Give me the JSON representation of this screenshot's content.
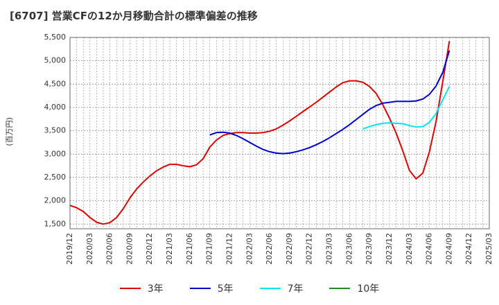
{
  "chart_data": {
    "type": "line",
    "title": "[6707]  営業CFの12か月移動合計の標準偏差の推移",
    "ylabel": "(百万円)",
    "xlabel": "",
    "ylim": [
      1400,
      5500
    ],
    "yticks": [
      1500,
      2000,
      2500,
      3000,
      3500,
      4000,
      4500,
      5000,
      5500
    ],
    "ytick_labels": [
      "1,500",
      "2,000",
      "2,500",
      "3,000",
      "3,500",
      "4,000",
      "4,500",
      "5,000",
      "5,500"
    ],
    "x_ticks": [
      "2019/12",
      "2020/03",
      "2020/06",
      "2020/09",
      "2020/12",
      "2021/03",
      "2021/06",
      "2021/09",
      "2021/12",
      "2022/03",
      "2022/06",
      "2022/09",
      "2022/12",
      "2023/03",
      "2023/06",
      "2023/09",
      "2023/12",
      "2024/03",
      "2024/06",
      "2024/09",
      "2024/12",
      "2025/03"
    ],
    "grid": true,
    "legend_position": "bottom",
    "series": [
      {
        "name": "3年",
        "color": "#dd0000",
        "x": [
          "2019/12",
          "2020/01",
          "2020/02",
          "2020/03",
          "2020/04",
          "2020/05",
          "2020/06",
          "2020/07",
          "2020/08",
          "2020/09",
          "2020/10",
          "2020/11",
          "2020/12",
          "2021/01",
          "2021/02",
          "2021/03",
          "2021/04",
          "2021/05",
          "2021/06",
          "2021/07",
          "2021/08",
          "2021/09",
          "2021/10",
          "2021/11",
          "2021/12",
          "2022/01",
          "2022/02",
          "2022/03",
          "2022/04",
          "2022/05",
          "2022/06",
          "2022/07",
          "2022/08",
          "2022/09",
          "2022/10",
          "2022/11",
          "2022/12",
          "2023/01",
          "2023/02",
          "2023/03",
          "2023/04",
          "2023/05",
          "2023/06",
          "2023/07",
          "2023/08",
          "2023/09",
          "2023/10",
          "2023/11",
          "2023/12",
          "2024/01",
          "2024/02",
          "2024/03",
          "2024/04",
          "2024/05",
          "2024/06",
          "2024/07",
          "2024/08",
          "2024/09"
        ],
        "values": [
          1900,
          1850,
          1770,
          1640,
          1540,
          1500,
          1530,
          1640,
          1830,
          2060,
          2250,
          2400,
          2530,
          2640,
          2720,
          2780,
          2780,
          2750,
          2730,
          2770,
          2900,
          3150,
          3300,
          3400,
          3440,
          3460,
          3460,
          3450,
          3450,
          3460,
          3490,
          3540,
          3620,
          3710,
          3810,
          3910,
          4010,
          4110,
          4220,
          4330,
          4440,
          4530,
          4570,
          4570,
          4540,
          4450,
          4300,
          4060,
          3770,
          3450,
          3070,
          2650,
          2470,
          2590,
          3050,
          3700,
          4550,
          5420
        ]
      },
      {
        "name": "5年",
        "color": "#0000cc",
        "x": [
          "2021/09",
          "2021/10",
          "2021/11",
          "2021/12",
          "2022/01",
          "2022/02",
          "2022/03",
          "2022/04",
          "2022/05",
          "2022/06",
          "2022/07",
          "2022/08",
          "2022/09",
          "2022/10",
          "2022/11",
          "2022/12",
          "2023/01",
          "2023/02",
          "2023/03",
          "2023/04",
          "2023/05",
          "2023/06",
          "2023/07",
          "2023/08",
          "2023/09",
          "2023/10",
          "2023/11",
          "2023/12",
          "2024/01",
          "2024/02",
          "2024/03",
          "2024/04",
          "2024/05",
          "2024/06",
          "2024/07",
          "2024/08",
          "2024/09"
        ],
        "values": [
          3410,
          3460,
          3470,
          3450,
          3400,
          3330,
          3250,
          3170,
          3100,
          3050,
          3020,
          3010,
          3020,
          3050,
          3090,
          3140,
          3200,
          3270,
          3350,
          3440,
          3530,
          3630,
          3740,
          3850,
          3960,
          4040,
          4090,
          4110,
          4130,
          4130,
          4130,
          4140,
          4180,
          4280,
          4460,
          4750,
          5220
        ]
      },
      {
        "name": "7年",
        "color": "#00e5ee",
        "x": [
          "2023/08",
          "2023/09",
          "2023/10",
          "2023/11",
          "2023/12",
          "2024/01",
          "2024/02",
          "2024/03",
          "2024/04",
          "2024/05",
          "2024/06",
          "2024/07",
          "2024/08",
          "2024/09"
        ],
        "values": [
          3540,
          3590,
          3630,
          3660,
          3670,
          3660,
          3650,
          3610,
          3580,
          3590,
          3680,
          3870,
          4160,
          4450
        ]
      },
      {
        "name": "10年",
        "color": "#228b22",
        "x": [],
        "values": []
      }
    ]
  }
}
